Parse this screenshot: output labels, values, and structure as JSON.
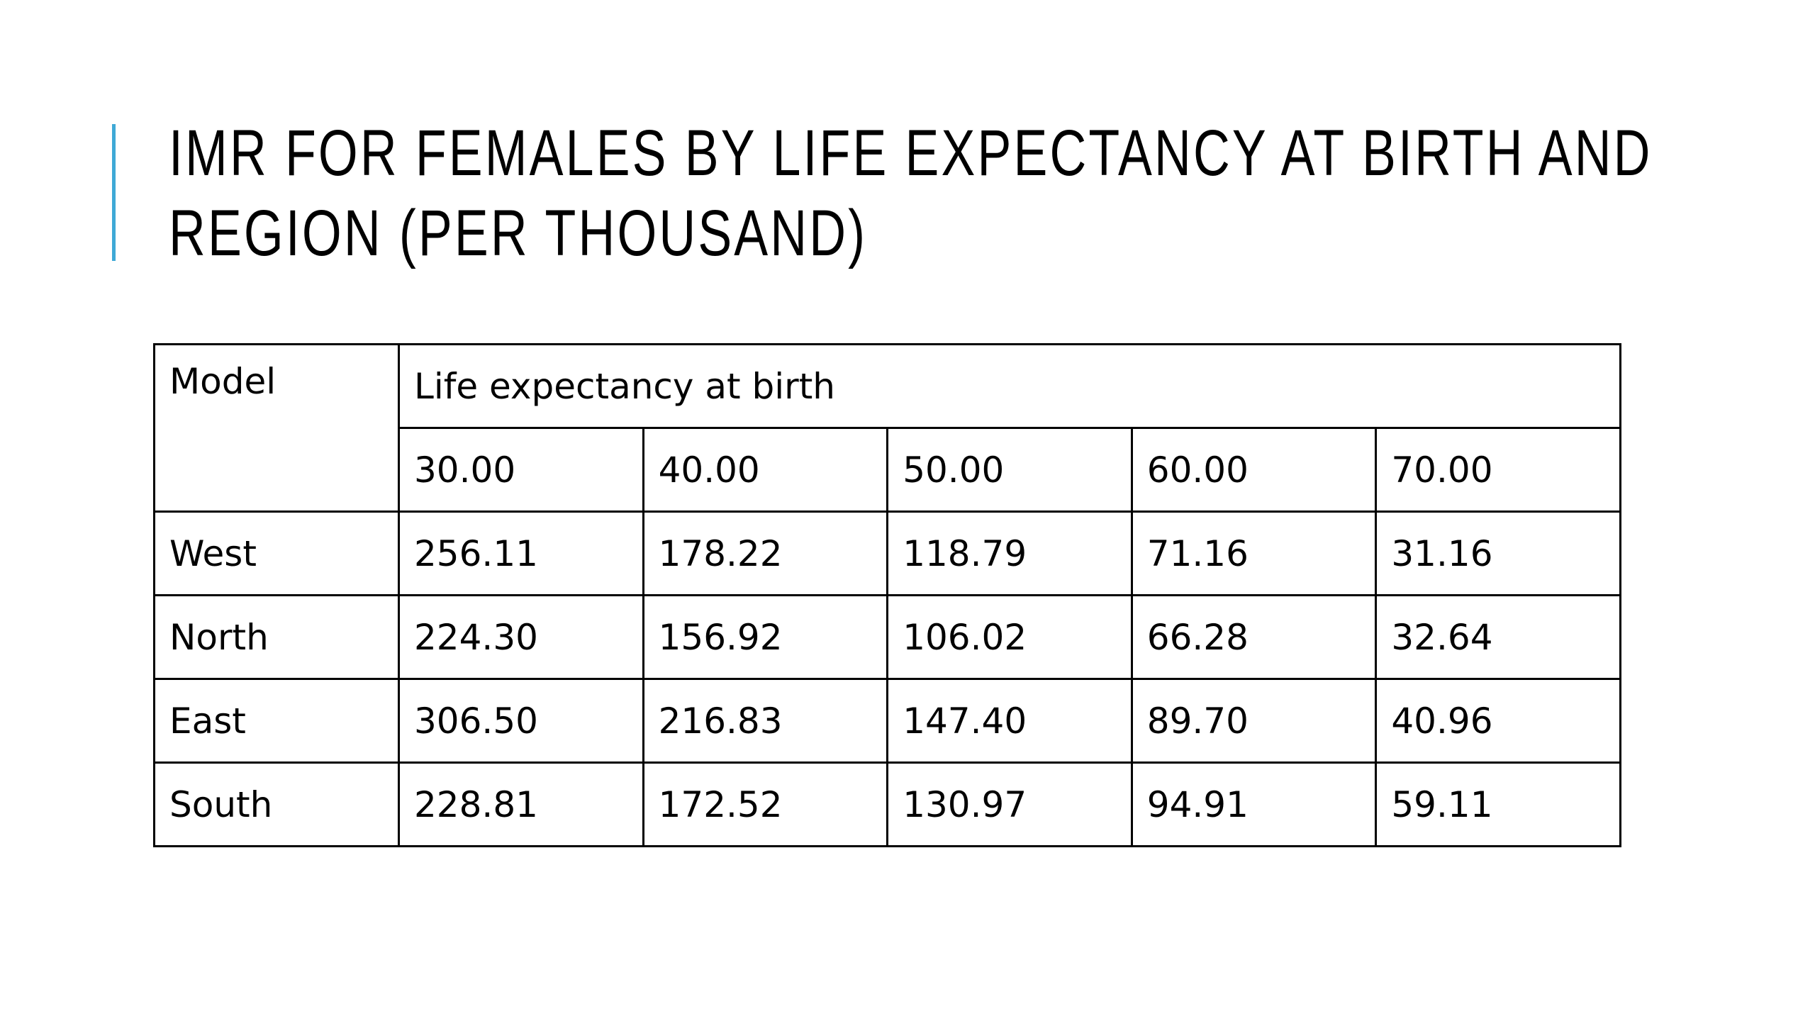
{
  "slide": {
    "title_line1": "IMR FOR FEMALES BY LIFE EXPECTANCY AT BIRTH AND",
    "title_line2": "REGION (PER THOUSAND)",
    "accent_color": "#3fa9d6"
  },
  "table": {
    "corner_header": "Model",
    "group_header": "Life expectancy at birth",
    "columns": [
      "30.00",
      "40.00",
      "50.00",
      "60.00",
      "70.00"
    ],
    "rows": [
      {
        "label": "West",
        "values": [
          "256.11",
          "178.22",
          "118.79",
          "71.16",
          "31.16"
        ]
      },
      {
        "label": "North",
        "values": [
          "224.30",
          "156.92",
          "106.02",
          "66.28",
          "32.64"
        ]
      },
      {
        "label": "East",
        "values": [
          "306.50",
          "216.83",
          "147.40",
          "89.70",
          "40.96"
        ]
      },
      {
        "label": "South",
        "values": [
          "228.81",
          "172.52",
          "130.97",
          "94.91",
          "59.11"
        ]
      }
    ]
  }
}
